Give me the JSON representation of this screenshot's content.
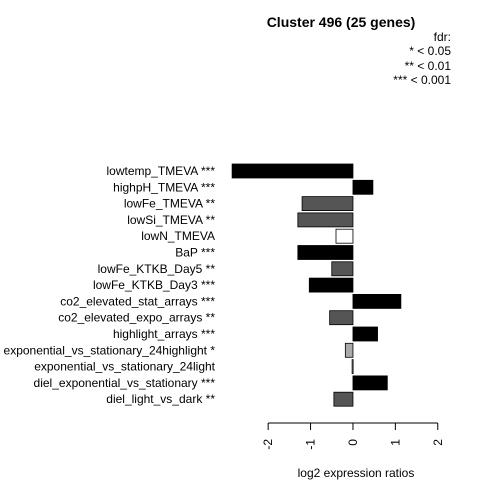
{
  "chart_data": {
    "type": "bar",
    "orientation": "horizontal",
    "title": "Cluster 496 (25 genes)",
    "xlabel": "log2 expression ratios",
    "xlim": [
      -2.9,
      2.1
    ],
    "xticks": [
      -2,
      -1,
      0,
      1,
      2
    ],
    "xtick_labels": [
      "-2",
      "-1",
      "0",
      "1",
      "2"
    ],
    "legend": {
      "title": "fdr:",
      "entries": [
        "* < 0.05",
        "** < 0.01",
        "*** < 0.001"
      ],
      "position": "top-right"
    },
    "categories": [
      "lowtemp_TMEVA ***",
      "highpH_TMEVA ***",
      "lowFe_TMEVA **",
      "lowSi_TMEVA **",
      "lowN_TMEVA",
      "BaP ***",
      "lowFe_KTKB_Day5 **",
      "lowFe_KTKB_Day3 ***",
      "co2_elevated_stat_arrays ***",
      "co2_elevated_expo_arrays **",
      "highlight_arrays ***",
      "exponential_vs_stationary_24highlight *",
      "exponential_vs_stationary_24light",
      "diel_exponential_vs_stationary ***",
      "diel_light_vs_dark **"
    ],
    "values": [
      -2.85,
      0.47,
      -1.2,
      -1.3,
      -0.4,
      -1.3,
      -0.5,
      -1.03,
      1.13,
      -0.55,
      0.58,
      -0.18,
      -0.02,
      0.81,
      -0.45
    ],
    "fills": [
      "#000000",
      "#000000",
      "#555555",
      "#555555",
      "#ffffff",
      "#000000",
      "#555555",
      "#000000",
      "#000000",
      "#555555",
      "#000000",
      "#aaaaaa",
      "#ffffff",
      "#000000",
      "#555555"
    ]
  }
}
